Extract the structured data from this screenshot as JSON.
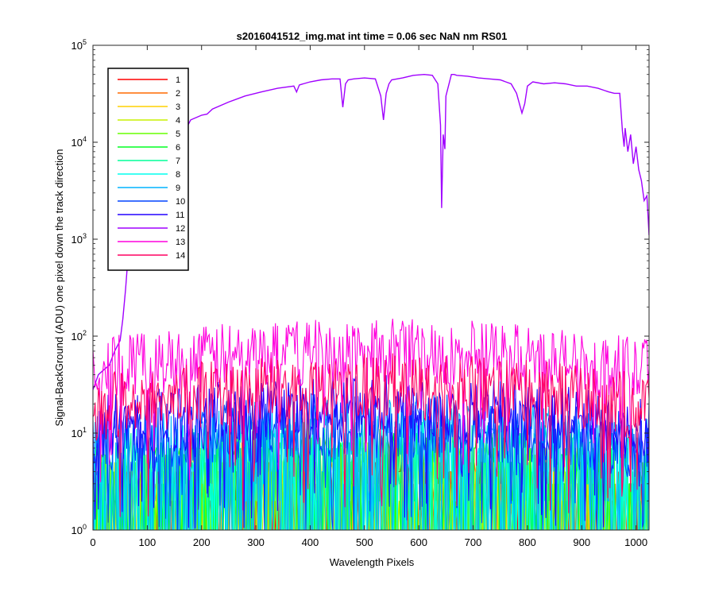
{
  "chart_data": {
    "type": "line",
    "title": "s2016041512_img.mat int time = 0.06 sec  NaN nm RS01",
    "xlabel": "Wavelength Pixels",
    "ylabel": "Signal-BackGround (ADU) one pixel down the track direction",
    "xlim": [
      0,
      1024
    ],
    "ylim": [
      1,
      100000
    ],
    "yscale": "log",
    "grid": false,
    "legend_position": "top-left",
    "xticks": [
      0,
      100,
      200,
      300,
      400,
      500,
      600,
      700,
      800,
      900,
      1000
    ],
    "yticks": [
      {
        "value": 1,
        "base": "10",
        "exp": "0"
      },
      {
        "value": 10,
        "base": "10",
        "exp": "1"
      },
      {
        "value": 100,
        "base": "10",
        "exp": "2"
      },
      {
        "value": 1000,
        "base": "10",
        "exp": "3"
      },
      {
        "value": 10000,
        "base": "10",
        "exp": "4"
      },
      {
        "value": 100000,
        "base": "10",
        "exp": "5"
      }
    ],
    "series": [
      {
        "name": "1",
        "color": "#ff0000",
        "level": 2
      },
      {
        "name": "2",
        "color": "#ff6a00",
        "level": 2
      },
      {
        "name": "3",
        "color": "#ffd000",
        "level": 2.5
      },
      {
        "name": "4",
        "color": "#c8f000",
        "level": 3
      },
      {
        "name": "5",
        "color": "#66ff00",
        "level": 3.5
      },
      {
        "name": "6",
        "color": "#00ff22",
        "level": 4
      },
      {
        "name": "7",
        "color": "#00ff99",
        "level": 5
      },
      {
        "name": "8",
        "color": "#00ffee",
        "level": 6
      },
      {
        "name": "9",
        "color": "#00b4ff",
        "level": 8
      },
      {
        "name": "10",
        "color": "#0044ff",
        "level": 12
      },
      {
        "name": "11",
        "color": "#2200ff",
        "level": 18
      },
      {
        "name": "12",
        "color": "#a000ff",
        "level": null,
        "x": [
          0,
          10,
          20,
          30,
          40,
          50,
          55,
          60,
          65,
          70,
          75,
          80,
          90,
          100,
          120,
          140,
          160,
          170,
          175,
          180,
          200,
          210,
          220,
          250,
          280,
          310,
          340,
          370,
          375,
          380,
          400,
          420,
          440,
          455,
          460,
          465,
          470,
          480,
          500,
          520,
          530,
          535,
          540,
          545,
          550,
          570,
          590,
          610,
          625,
          635,
          640,
          642,
          645,
          648,
          650,
          660,
          665,
          670,
          690,
          710,
          730,
          750,
          770,
          780,
          790,
          795,
          800,
          810,
          830,
          850,
          870,
          890,
          910,
          930,
          950,
          960,
          970,
          975,
          978,
          980,
          985,
          990,
          995,
          1000,
          1005,
          1010,
          1015,
          1020,
          1024
        ],
        "y": [
          28,
          40,
          45,
          50,
          70,
          90,
          150,
          300,
          700,
          1500,
          3500,
          6500,
          10000,
          12500,
          14500,
          16000,
          17500,
          18000,
          15000,
          17000,
          19000,
          19500,
          22000,
          26000,
          30000,
          33000,
          36000,
          38000,
          33000,
          39000,
          42000,
          44000,
          45000,
          45000,
          23000,
          40000,
          44000,
          45000,
          46000,
          45000,
          30000,
          17000,
          32000,
          40000,
          44000,
          46000,
          49000,
          50000,
          49000,
          40000,
          15000,
          2100,
          12000,
          8500,
          30000,
          50000,
          50000,
          49000,
          48000,
          46000,
          45000,
          44000,
          40000,
          32000,
          20000,
          25000,
          38000,
          42000,
          40000,
          41000,
          40000,
          38000,
          38000,
          36000,
          33000,
          32000,
          32000,
          13000,
          9000,
          14000,
          8000,
          12000,
          6000,
          9000,
          5200,
          4000,
          2500,
          2800,
          1100
        ]
      },
      {
        "name": "13",
        "color": "#ff00dd",
        "level": 70
      },
      {
        "name": "14",
        "color": "#ff0060",
        "level": 30
      }
    ]
  }
}
